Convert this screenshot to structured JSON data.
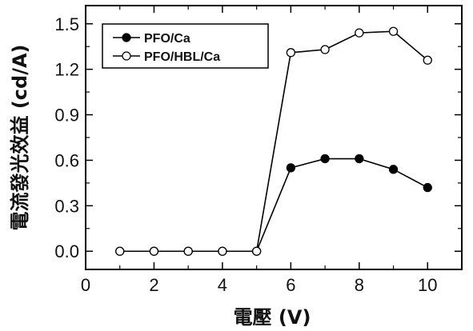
{
  "chart_data": {
    "type": "line",
    "xlabel": "電壓 (V)",
    "ylabel": "電流發光效益 (cd/A)",
    "xlim": [
      0,
      11
    ],
    "ylim": [
      -0.12,
      1.62
    ],
    "xticks": [
      0,
      2,
      4,
      6,
      8,
      10
    ],
    "yticks": [
      0.0,
      0.3,
      0.6,
      0.9,
      1.2,
      1.5
    ],
    "xtick_labels": [
      "0",
      "2",
      "4",
      "6",
      "8",
      "10"
    ],
    "ytick_labels": [
      "0.0",
      "0.3",
      "0.6",
      "0.9",
      "1.2",
      "1.5"
    ],
    "grid": false,
    "legend_position": "top-left",
    "series": [
      {
        "name": "PFO/Ca",
        "marker": "filled-circle",
        "color": "#000000",
        "x": [
          1,
          2,
          3,
          4,
          5,
          6,
          7,
          8,
          9,
          10
        ],
        "y": [
          0.0,
          0.0,
          0.0,
          0.0,
          0.0,
          0.55,
          0.61,
          0.61,
          0.54,
          0.42
        ]
      },
      {
        "name": "PFO/HBL/Ca",
        "marker": "open-circle",
        "color": "#000000",
        "x": [
          1,
          2,
          3,
          4,
          5,
          6,
          7,
          8,
          9,
          10
        ],
        "y": [
          0.0,
          0.0,
          0.0,
          0.0,
          0.0,
          1.31,
          1.33,
          1.44,
          1.45,
          1.26
        ]
      }
    ]
  }
}
